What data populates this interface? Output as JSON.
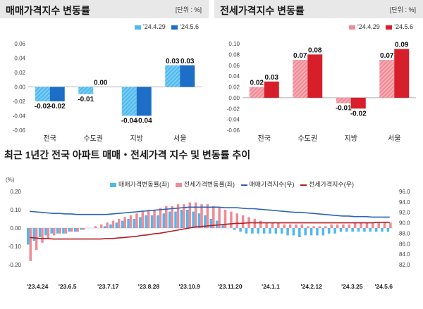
{
  "colors": {
    "sale_light": "#4fb9ee",
    "sale_dark": "#1c6ec6",
    "jeonse_light": "#f08a96",
    "jeonse_dark": "#d61f2b",
    "sale_index_line": "#2a64b8",
    "jeonse_index_line": "#b31d22",
    "panel_bg": "#e8e8e8"
  },
  "chart_data": [
    {
      "type": "bar",
      "title": "매매가격지수 변동률",
      "unit": "[단위 : %]",
      "categories": [
        "전국",
        "수도권",
        "지방",
        "서울"
      ],
      "series": [
        {
          "name": "'24.4.29",
          "values": [
            -0.02,
            -0.01,
            -0.04,
            0.03
          ],
          "labels": [
            "-0.02",
            "-0.01",
            "-0.04",
            "0.03"
          ]
        },
        {
          "name": "'24.5.6",
          "values": [
            -0.02,
            0.0,
            -0.04,
            0.03
          ],
          "labels": [
            "-0.02",
            "0.00",
            "-0.04",
            "0.03"
          ]
        }
      ],
      "yticks": [
        "0.06",
        "0.04",
        "0.02",
        "0.00",
        "-0.02",
        "-0.04",
        "-0.06"
      ],
      "ylim": [
        -0.06,
        0.06
      ],
      "legend_position": "top-right"
    },
    {
      "type": "bar",
      "title": "전세가격지수 변동률",
      "unit": "[단위 : %]",
      "categories": [
        "전국",
        "수도권",
        "지방",
        "서울"
      ],
      "series": [
        {
          "name": "'24.4.29",
          "values": [
            0.02,
            0.07,
            -0.01,
            0.07
          ],
          "labels": [
            "0.02",
            "0.07",
            "-0.01",
            "0.07"
          ]
        },
        {
          "name": "'24.5.6",
          "values": [
            0.03,
            0.08,
            -0.02,
            0.09
          ],
          "labels": [
            "0.03",
            "0.08",
            "-0.02",
            "0.09"
          ]
        }
      ],
      "yticks": [
        "0.10",
        "0.08",
        "0.06",
        "0.04",
        "0.02",
        "0.00",
        "-0.02",
        "-0.04",
        "-0.06"
      ],
      "ylim": [
        -0.06,
        0.1
      ],
      "legend_position": "top-right"
    },
    {
      "type": "bar+line",
      "title": "최근 1년간 전국 아파트 매매・전세가격 지수 및 변동률 추이",
      "left_axis_label": "(%)",
      "left_yticks": [
        "0.20",
        "0.10",
        "0.00",
        "-0.10",
        "-0.20"
      ],
      "left_ylim": [
        -0.2,
        0.2
      ],
      "right_yticks": [
        "96.0",
        "94.0",
        "92.0",
        "90.0",
        "88.0",
        "86.0",
        "84.0",
        "82.0"
      ],
      "right_ylim": [
        82,
        96
      ],
      "xticks": [
        "'23.4.24",
        "'23.6.5",
        "'23.7.17",
        "'23.8.28",
        "'23.10.9",
        "'23.11.20",
        "'24.1.1",
        "'24.2.12",
        "'24.3.25",
        "'24.5.6"
      ],
      "legend_position": "top",
      "series": [
        {
          "name": "매매가격변동률(좌)",
          "kind": "bar",
          "axis": "left",
          "values": [
            -0.09,
            -0.07,
            -0.05,
            -0.04,
            -0.03,
            -0.03,
            -0.03,
            -0.02,
            -0.02,
            -0.01,
            0.0,
            0.0,
            0.0,
            0.01,
            0.02,
            0.03,
            0.04,
            0.05,
            0.05,
            0.06,
            0.07,
            0.07,
            0.07,
            0.08,
            0.09,
            0.09,
            0.1,
            0.1,
            0.09,
            0.08,
            0.07,
            0.05,
            0.04,
            0.02,
            0.0,
            -0.01,
            -0.02,
            -0.03,
            -0.03,
            -0.03,
            -0.03,
            -0.03,
            -0.03,
            -0.03,
            -0.04,
            -0.04,
            -0.05,
            -0.04,
            -0.04,
            -0.04,
            -0.04,
            -0.03,
            -0.03,
            -0.02,
            -0.02,
            -0.02,
            -0.02,
            -0.02,
            -0.02,
            -0.02,
            -0.02,
            -0.02
          ]
        },
        {
          "name": "전세가격변동률(좌)",
          "kind": "bar",
          "axis": "left",
          "values": [
            -0.18,
            -0.12,
            -0.08,
            -0.06,
            -0.04,
            -0.03,
            -0.03,
            -0.02,
            -0.02,
            -0.01,
            0.0,
            0.01,
            0.02,
            0.03,
            0.04,
            0.05,
            0.06,
            0.07,
            0.08,
            0.09,
            0.1,
            0.1,
            0.11,
            0.12,
            0.12,
            0.13,
            0.13,
            0.14,
            0.14,
            0.13,
            0.13,
            0.12,
            0.11,
            0.1,
            0.09,
            0.08,
            0.07,
            0.06,
            0.05,
            0.04,
            0.03,
            0.03,
            0.03,
            0.02,
            0.02,
            0.02,
            0.02,
            0.01,
            0.01,
            0.01,
            0.01,
            0.02,
            0.02,
            0.02,
            0.02,
            0.03,
            0.03,
            0.03,
            0.03,
            0.03,
            0.03,
            0.03
          ]
        },
        {
          "name": "매매가격지수(우)",
          "kind": "line",
          "axis": "right",
          "values": [
            92.2,
            92.1,
            92.0,
            91.9,
            91.8,
            91.8,
            91.7,
            91.7,
            91.6,
            91.6,
            91.6,
            91.6,
            91.6,
            91.6,
            91.7,
            91.8,
            91.9,
            92.0,
            92.1,
            92.2,
            92.3,
            92.4,
            92.5,
            92.6,
            92.7,
            92.8,
            92.9,
            93.0,
            93.0,
            93.0,
            93.0,
            93.0,
            93.0,
            92.9,
            92.9,
            92.9,
            92.8,
            92.7,
            92.7,
            92.6,
            92.5,
            92.4,
            92.3,
            92.2,
            92.1,
            92.0,
            92.0,
            91.9,
            91.8,
            91.7,
            91.6,
            91.5,
            91.4,
            91.3,
            91.3,
            91.2,
            91.2,
            91.2,
            91.1,
            91.1,
            91.1,
            91.1
          ]
        },
        {
          "name": "전세가격지수(우)",
          "kind": "line",
          "axis": "right",
          "values": [
            87.2,
            87.1,
            87.0,
            87.0,
            86.9,
            86.9,
            86.9,
            86.9,
            86.9,
            86.9,
            86.9,
            86.9,
            86.9,
            87.0,
            87.0,
            87.1,
            87.2,
            87.3,
            87.4,
            87.6,
            87.7,
            87.9,
            88.0,
            88.2,
            88.4,
            88.6,
            88.8,
            89.0,
            89.2,
            89.3,
            89.4,
            89.5,
            89.6,
            89.7,
            89.8,
            89.9,
            89.9,
            90.0,
            90.0,
            90.0,
            90.0,
            90.0,
            90.0,
            90.0,
            90.0,
            90.0,
            90.0,
            90.0,
            90.0,
            90.0,
            90.0,
            90.0,
            90.0,
            90.0,
            90.0,
            90.0,
            90.0,
            90.0,
            90.0,
            90.1,
            90.1,
            90.1
          ]
        }
      ]
    }
  ]
}
